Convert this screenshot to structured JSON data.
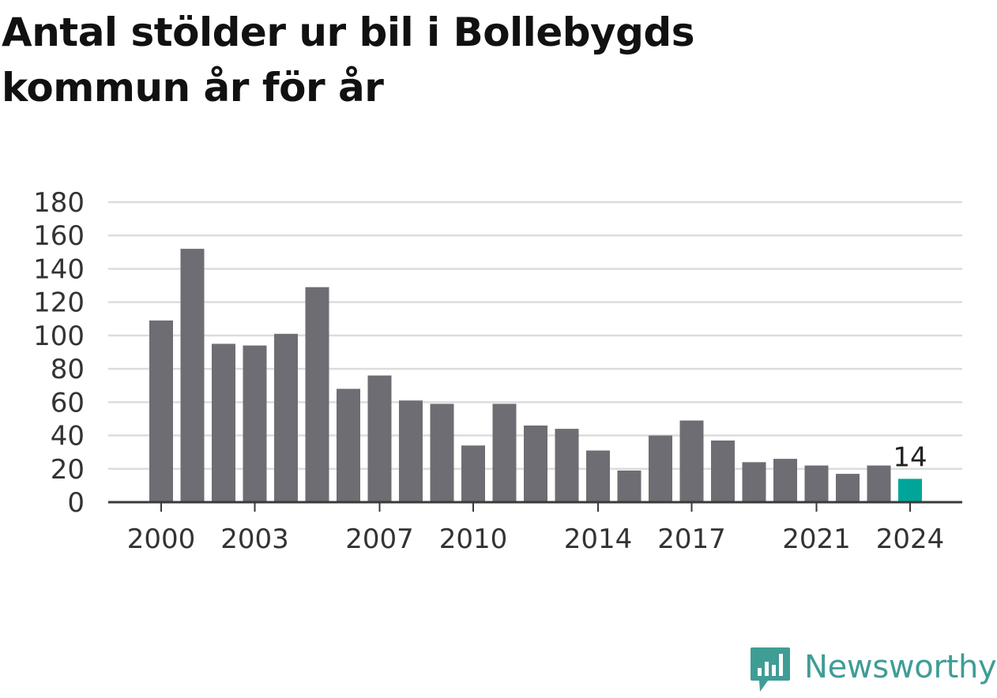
{
  "title": "Antal stölder ur bil i Bollebygds kommun år för år",
  "brand": "Newsworthy",
  "colors": {
    "bar": "#6e6d73",
    "highlight": "#00a59a",
    "grid": "#dcdcdc",
    "axis": "#3a3a3a",
    "text": "#333333",
    "brand": "#3f9d96"
  },
  "chart_data": {
    "type": "bar",
    "title": "Antal stölder ur bil i Bollebygds kommun år för år",
    "xlabel": "",
    "ylabel": "",
    "categories": [
      "2000",
      "2001",
      "2002",
      "2003",
      "2004",
      "2005",
      "2006",
      "2007",
      "2008",
      "2009",
      "2010",
      "2011",
      "2012",
      "2013",
      "2014",
      "2015",
      "2016",
      "2017",
      "2018",
      "2019",
      "2020",
      "2021",
      "2022",
      "2023",
      "2024"
    ],
    "values": [
      109,
      152,
      95,
      94,
      101,
      129,
      68,
      76,
      61,
      59,
      34,
      59,
      46,
      44,
      31,
      19,
      40,
      49,
      37,
      24,
      26,
      22,
      17,
      22,
      14
    ],
    "ylim": [
      0,
      180
    ],
    "yticks": [
      0,
      20,
      40,
      60,
      80,
      100,
      120,
      140,
      160,
      180
    ],
    "xtick_labels": [
      "2000",
      "2003",
      "2007",
      "2010",
      "2014",
      "2017",
      "2021",
      "2024"
    ],
    "highlight": "2024",
    "data_labels": [
      {
        "category": "2024",
        "text": "14"
      }
    ],
    "grid": true,
    "legend": "none"
  }
}
